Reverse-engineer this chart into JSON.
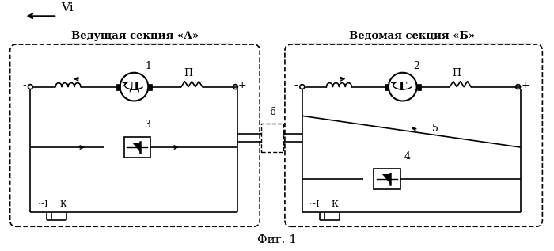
{
  "title": "Фиг. 1",
  "vi_label": "Vi",
  "section_a_label": "Ведущая секция «А»",
  "section_b_label": "Ведомая секция «Б»",
  "motor_label": "Д",
  "generator_label": "Г",
  "label_1": "1",
  "label_2": "2",
  "label_3": "3",
  "label_4": "4",
  "label_5": "5",
  "label_6": "6",
  "P_label": "П",
  "minus_label": "-",
  "plus_label": "+",
  "tilde_I_label": "~I",
  "K_label": "К",
  "bg_color": "#ffffff",
  "line_color": "#000000"
}
